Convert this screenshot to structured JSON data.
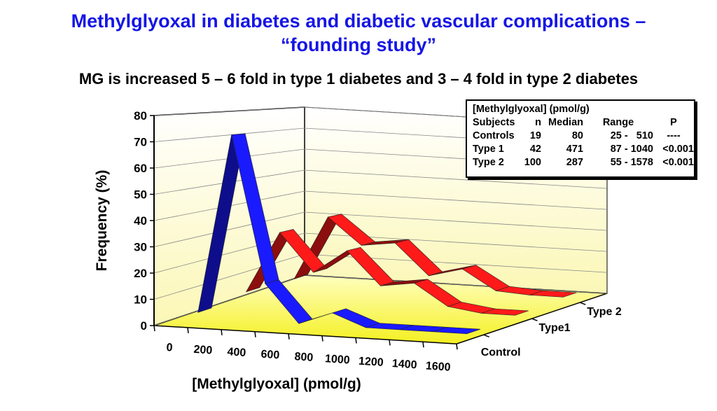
{
  "title_line1": "Methylglyoxal in diabetes and diabetic vascular complications –",
  "title_line2": "“founding study”",
  "subtitle": "MG is increased 5 – 6 fold in type 1 diabetes and 3 – 4 fold in type 2 diabetes",
  "table": {
    "title": "[Methylglyoxal] (pmol/g)",
    "headers": [
      "Subjects",
      "n",
      "Median",
      "Range",
      "P"
    ],
    "rows": [
      [
        "Controls",
        "19",
        "80",
        "25 -   510",
        "----"
      ],
      [
        "Type 1",
        "42",
        "471",
        "87 - 1040",
        "<0.001"
      ],
      [
        "Type 2",
        "100",
        "287",
        "55 - 1578",
        "<0.001"
      ]
    ]
  },
  "chart_data": {
    "type": "line",
    "style": "3d-ribbon",
    "xlabel": "[Methylglyoxal] (pmol/g)",
    "ylabel": "Frequency (%)",
    "categories": [
      "0",
      "200",
      "400",
      "600",
      "800",
      "1000",
      "1200",
      "1400",
      "1600"
    ],
    "y_ticks": [
      "0",
      "10",
      "20",
      "30",
      "40",
      "50",
      "60",
      "70",
      "80"
    ],
    "ylim": [
      0,
      80
    ],
    "depth_labels": [
      "Control",
      "Type1",
      "Type 2"
    ],
    "series": [
      {
        "name": "Type 2",
        "color": "#ff1a1a",
        "values": [
          3,
          32,
          20,
          22,
          8,
          12,
          3,
          2,
          2
        ]
      },
      {
        "name": "Type1",
        "color": "#ff1a1a",
        "values": [
          4,
          30,
          14,
          24,
          10,
          12,
          3,
          1,
          1
        ]
      },
      {
        "name": "Control",
        "color": "#1a1aff",
        "values": [
          2,
          73,
          15,
          0,
          5,
          0,
          0,
          0,
          0
        ]
      }
    ],
    "grid": true
  }
}
